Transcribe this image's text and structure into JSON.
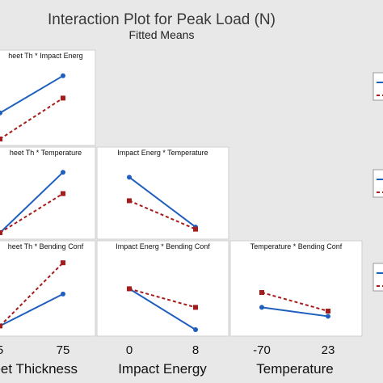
{
  "title": "Interaction Plot for Peak Load (N)",
  "subtitle": "Fitted Means",
  "colors": {
    "series_a": "#1f5fbf",
    "series_b": "#a61c1c",
    "panel_bg": "#ffffff",
    "page_bg": "#e8e8e8",
    "panel_border": "#cfcfcf"
  },
  "chart_data": {
    "type": "line",
    "factors": [
      {
        "name": "Sheet Thickness",
        "label": "heet Thickness",
        "ticks": [
          "5",
          "75"
        ]
      },
      {
        "name": "Impact Energy",
        "label": "Impact Energy",
        "ticks": [
          "0",
          "8"
        ]
      },
      {
        "name": "Temperature",
        "label": "Temperature",
        "ticks": [
          "-70",
          "23"
        ]
      }
    ],
    "panels": [
      {
        "title": "heet Th * Impact Energ",
        "row": 0,
        "col": 0,
        "series": [
          {
            "style": "solid",
            "marker": "circle",
            "values": [
              0.35,
              0.85
            ]
          },
          {
            "style": "dashed",
            "marker": "square",
            "values": [
              0.0,
              0.55
            ]
          }
        ]
      },
      {
        "title": "heet Th * Temperature",
        "row": 1,
        "col": 0,
        "series": [
          {
            "style": "solid",
            "marker": "circle",
            "values": [
              0.0,
              0.85
            ]
          },
          {
            "style": "dashed",
            "marker": "square",
            "values": [
              0.0,
              0.55
            ]
          }
        ]
      },
      {
        "title": "Impact Energ * Temperature",
        "row": 1,
        "col": 1,
        "series": [
          {
            "style": "solid",
            "marker": "circle",
            "values": [
              0.78,
              0.08
            ]
          },
          {
            "style": "dashed",
            "marker": "square",
            "values": [
              0.45,
              0.05
            ]
          }
        ]
      },
      {
        "title": "heet Th * Bending Conf",
        "row": 2,
        "col": 0,
        "series": [
          {
            "style": "solid",
            "marker": "circle",
            "values": [
              0.05,
              0.48
            ]
          },
          {
            "style": "dashed",
            "marker": "square",
            "values": [
              0.05,
              0.9
            ]
          }
        ]
      },
      {
        "title": "Impact Energ * Bending Conf",
        "row": 2,
        "col": 1,
        "series": [
          {
            "style": "solid",
            "marker": "circle",
            "values": [
              0.55,
              0.0
            ]
          },
          {
            "style": "dashed",
            "marker": "square",
            "values": [
              0.55,
              0.3
            ]
          }
        ]
      },
      {
        "title": "Temperature * Bending Conf",
        "row": 2,
        "col": 2,
        "series": [
          {
            "style": "solid",
            "marker": "circle",
            "values": [
              0.3,
              0.18
            ]
          },
          {
            "style": "dashed",
            "marker": "square",
            "values": [
              0.5,
              0.25
            ]
          }
        ]
      }
    ],
    "legend_stubs": [
      {
        "row": 0
      },
      {
        "row": 1
      },
      {
        "row": 2
      }
    ]
  }
}
